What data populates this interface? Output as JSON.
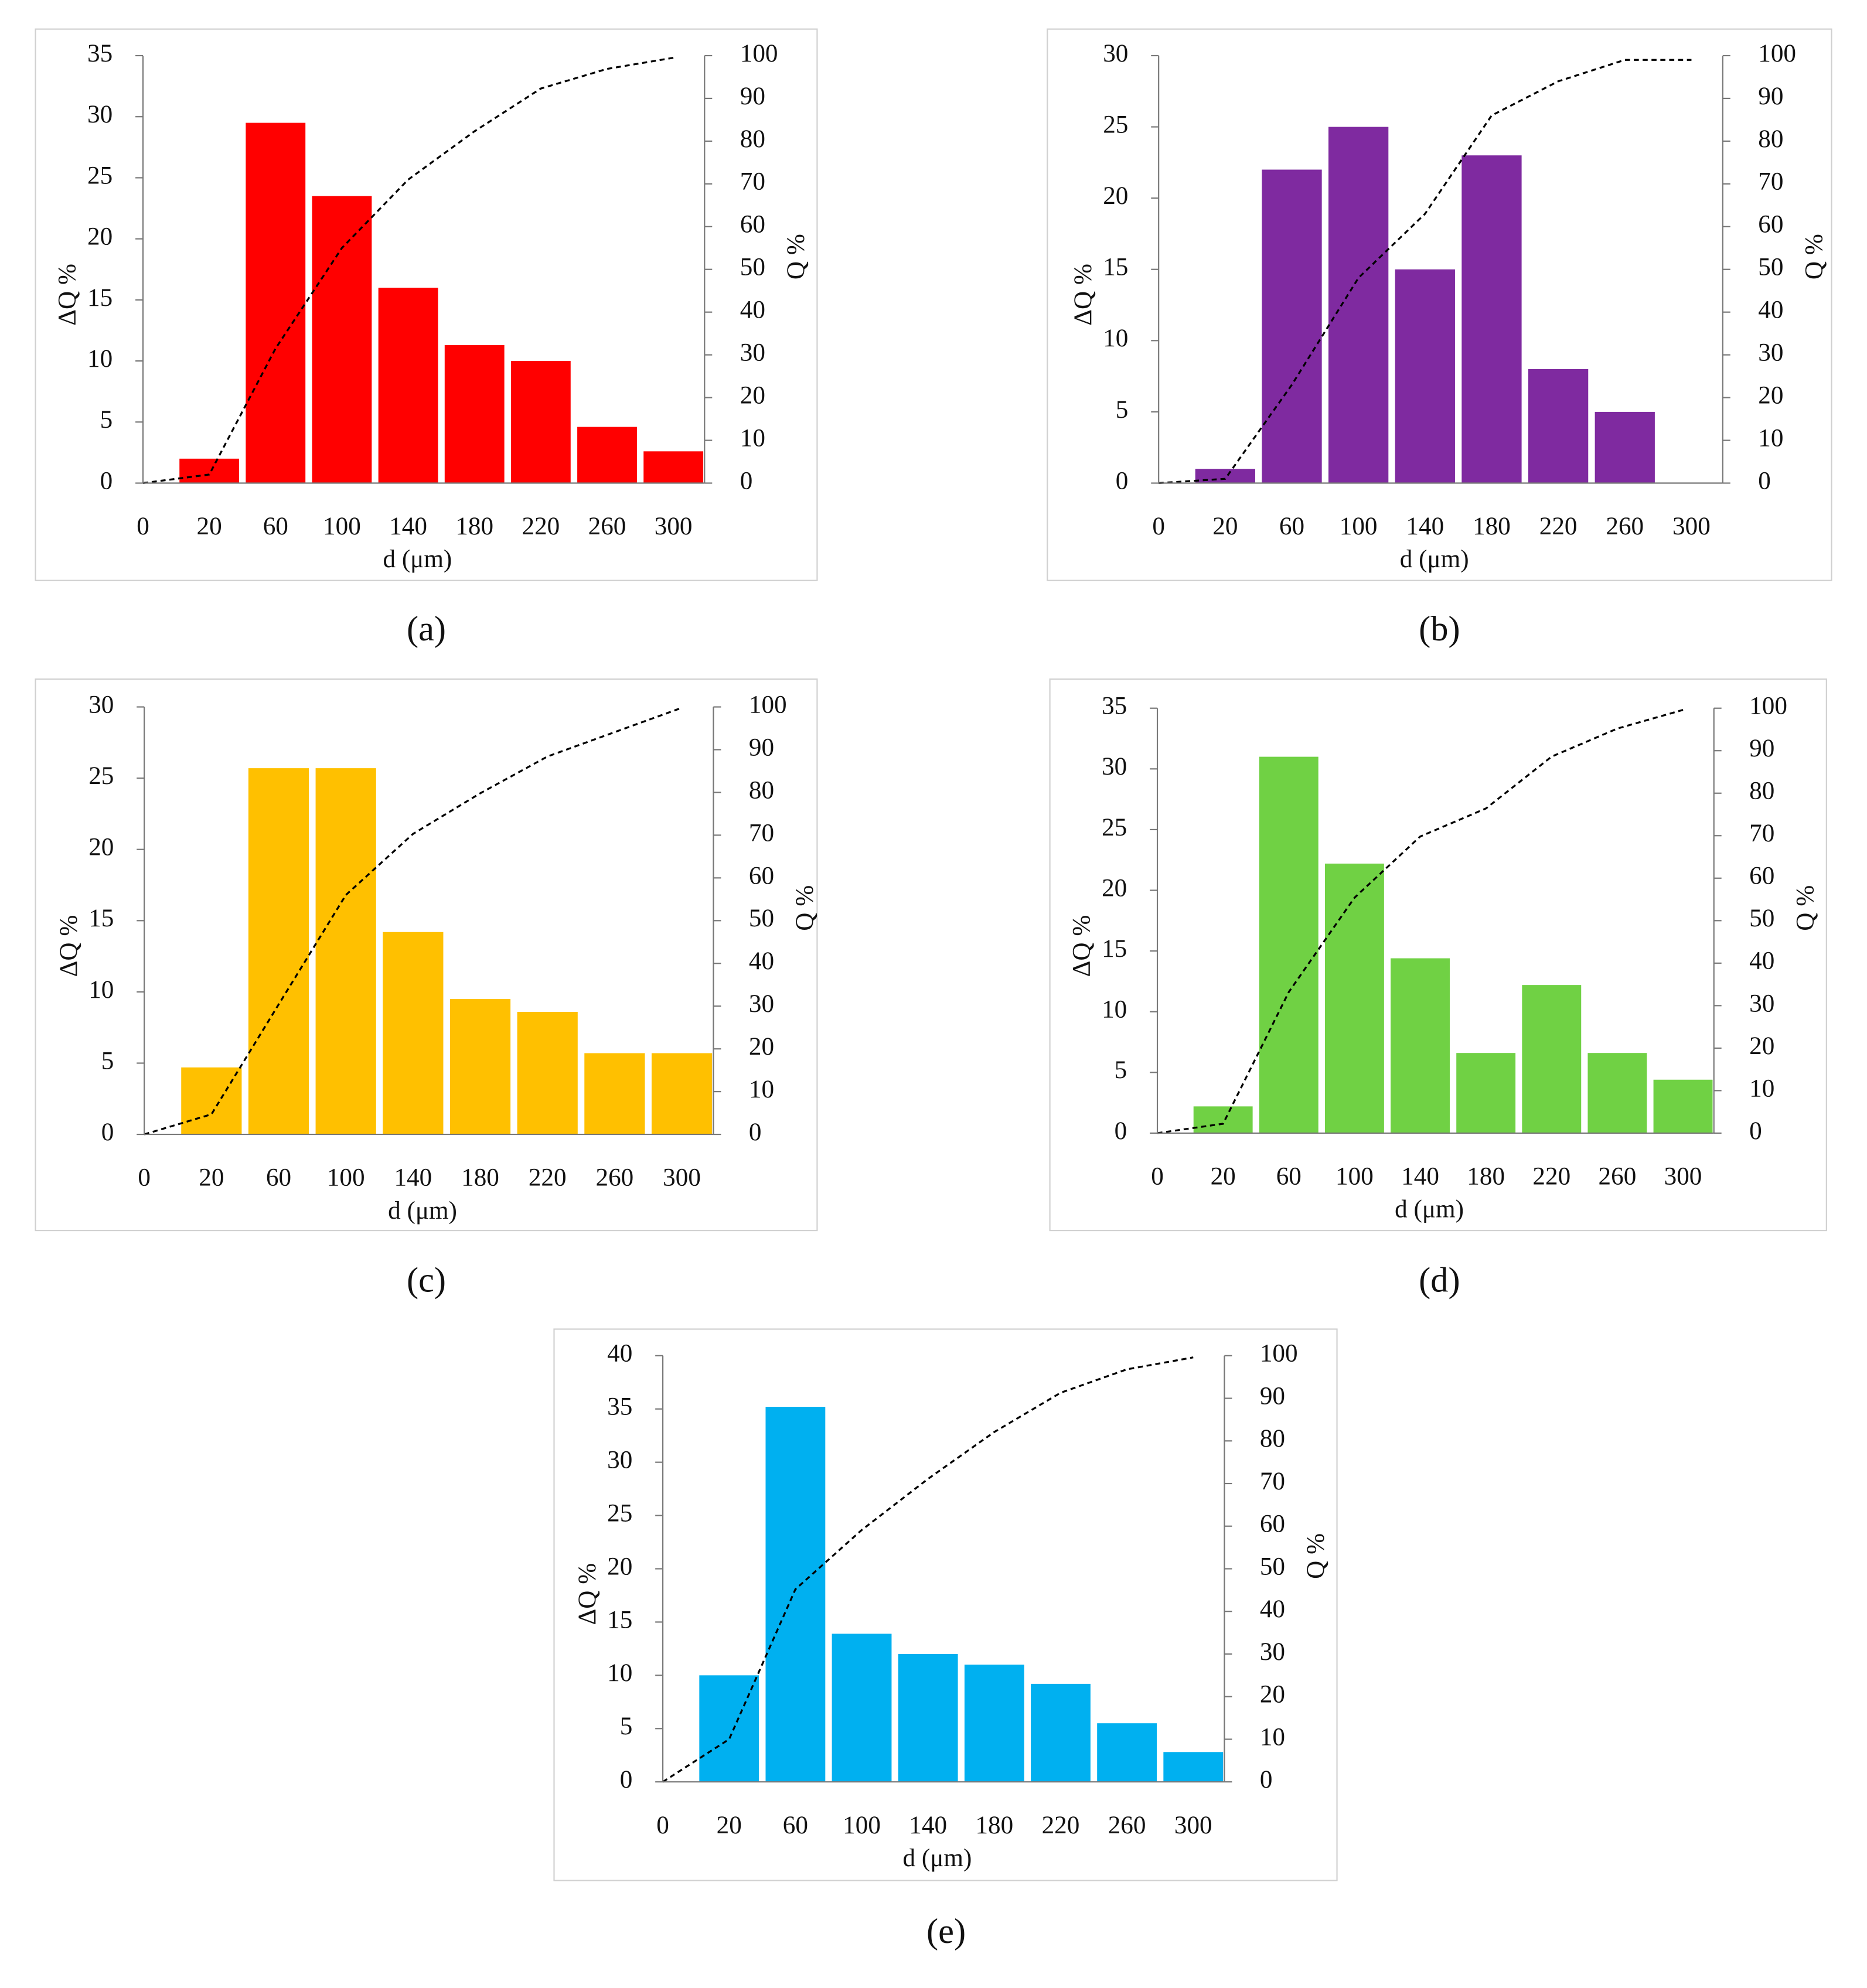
{
  "chart_data": [
    {
      "type": "bar",
      "label": "(a)",
      "xlabel": "d (μm)",
      "ylabel": "ΔQ %",
      "y2label": "Q %",
      "categories": [
        "0",
        "20",
        "60",
        "100",
        "140",
        "180",
        "220",
        "260",
        "300"
      ],
      "ylim": [
        0,
        35
      ],
      "yticks": [
        0,
        5,
        10,
        15,
        20,
        25,
        30,
        35
      ],
      "y2lim": [
        0,
        100
      ],
      "y2ticks": [
        0,
        10,
        20,
        30,
        40,
        50,
        60,
        70,
        80,
        90,
        100
      ],
      "series": [
        {
          "type": "bar",
          "color": "#ff0000",
          "values": [
            null,
            2,
            29.5,
            23.5,
            16,
            11.3,
            10,
            4.6,
            2.6
          ]
        },
        {
          "type": "line",
          "axis": "y2",
          "color": "#000000",
          "values": [
            0,
            2,
            31.5,
            55,
            71,
            82.3,
            92.3,
            96.9,
            99.5
          ]
        }
      ]
    },
    {
      "type": "bar",
      "label": "(b)",
      "xlabel": "d (μm)",
      "ylabel": "ΔQ %",
      "y2label": "Q %",
      "categories": [
        "0",
        "20",
        "60",
        "100",
        "140",
        "180",
        "220",
        "260",
        "300"
      ],
      "ylim": [
        0,
        30
      ],
      "yticks": [
        0,
        5,
        10,
        15,
        20,
        25,
        30
      ],
      "y2lim": [
        0,
        100
      ],
      "y2ticks": [
        0,
        10,
        20,
        30,
        40,
        50,
        60,
        70,
        80,
        90,
        100
      ],
      "series": [
        {
          "type": "bar",
          "color": "#7f2aa0",
          "values": [
            null,
            1,
            22,
            25,
            15,
            23,
            8,
            5,
            null
          ]
        },
        {
          "type": "line",
          "axis": "y2",
          "color": "#000000",
          "values": [
            0,
            1,
            23,
            48,
            63,
            86,
            94,
            99,
            99
          ]
        }
      ]
    },
    {
      "type": "bar",
      "label": "(c)",
      "xlabel": "d (μm)",
      "ylabel": "ΔQ %",
      "y2label": "Q %",
      "categories": [
        "0",
        "20",
        "60",
        "100",
        "140",
        "180",
        "220",
        "260",
        "300"
      ],
      "ylim": [
        0,
        30
      ],
      "yticks": [
        0,
        5,
        10,
        15,
        20,
        25,
        30
      ],
      "y2lim": [
        0,
        100
      ],
      "y2ticks": [
        0,
        10,
        20,
        30,
        40,
        50,
        60,
        70,
        80,
        90,
        100
      ],
      "series": [
        {
          "type": "bar",
          "color": "#ffc000",
          "values": [
            null,
            4.7,
            25.7,
            25.7,
            14.2,
            9.5,
            8.6,
            5.7,
            5.7
          ]
        },
        {
          "type": "line",
          "axis": "y2",
          "color": "#000000",
          "values": [
            0,
            4.7,
            30.4,
            56,
            70.3,
            79.8,
            88.4,
            94.1,
            99.8
          ]
        }
      ]
    },
    {
      "type": "bar",
      "label": "(d)",
      "xlabel": "d (μm)",
      "ylabel": "ΔQ %",
      "y2label": "Q %",
      "categories": [
        "0",
        "20",
        "60",
        "100",
        "140",
        "180",
        "220",
        "260",
        "300"
      ],
      "ylim": [
        0,
        35
      ],
      "yticks": [
        0,
        5,
        10,
        15,
        20,
        25,
        30,
        35
      ],
      "y2lim": [
        0,
        100
      ],
      "y2ticks": [
        0,
        10,
        20,
        30,
        40,
        50,
        60,
        70,
        80,
        90,
        100
      ],
      "series": [
        {
          "type": "bar",
          "color": "#70d144",
          "values": [
            null,
            2.2,
            31,
            22.2,
            14.4,
            6.6,
            12.2,
            6.6,
            4.4
          ]
        },
        {
          "type": "line",
          "axis": "y2",
          "color": "#000000",
          "values": [
            0,
            2.2,
            33.2,
            55.4,
            69.8,
            76.4,
            88.6,
            95.2,
            99.6
          ]
        }
      ]
    },
    {
      "type": "bar",
      "label": "(e)",
      "xlabel": "d (μm)",
      "ylabel": "ΔQ %",
      "y2label": "Q %",
      "categories": [
        "0",
        "20",
        "60",
        "100",
        "140",
        "180",
        "220",
        "260",
        "300"
      ],
      "ylim": [
        0,
        40
      ],
      "yticks": [
        0,
        5,
        10,
        15,
        20,
        25,
        30,
        35,
        40
      ],
      "y2lim": [
        0,
        100
      ],
      "y2ticks": [
        0,
        10,
        20,
        30,
        40,
        50,
        60,
        70,
        80,
        90,
        100
      ],
      "series": [
        {
          "type": "bar",
          "color": "#00b0f0",
          "values": [
            null,
            10,
            35.2,
            13.9,
            12,
            11,
            9.2,
            5.5,
            2.8
          ]
        },
        {
          "type": "line",
          "axis": "y2",
          "color": "#000000",
          "values": [
            0,
            10,
            45.2,
            59.1,
            71.1,
            82.1,
            91.3,
            96.8,
            99.6
          ]
        }
      ]
    }
  ]
}
